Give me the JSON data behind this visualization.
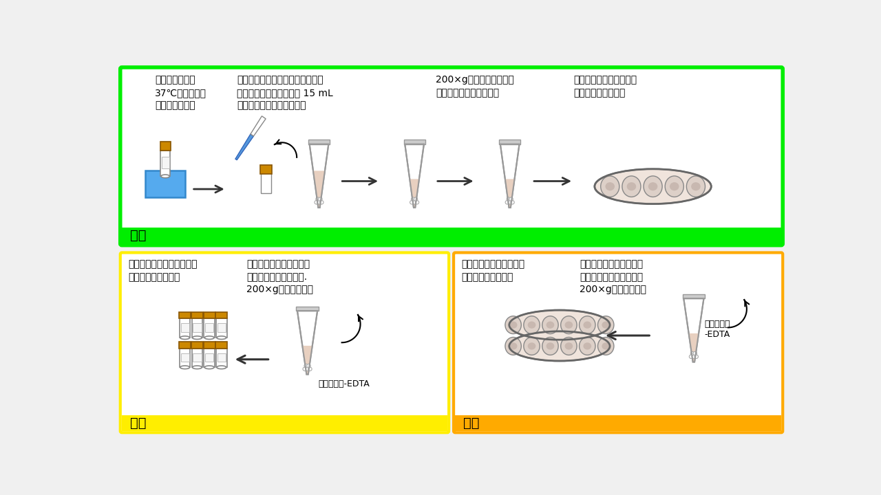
{
  "bg_color": "#f0f0f0",
  "top_box_edge": "#00ee00",
  "top_box_face": "#ffffff",
  "top_label_bg": "#00ee00",
  "bl_box_edge": "#ffee00",
  "bl_box_face": "#ffffff",
  "bl_label_bg": "#ffee00",
  "br_box_edge": "#ffaa00",
  "br_box_face": "#ffffff",
  "br_label_bg": "#ffaa00",
  "label_top": "解凍",
  "label_bl": "凍結",
  "label_br": "継代",
  "top_t1": "凍結バイアルを\n37℃のウオータ\nーバスに入れる",
  "top_t2": "バイアルの中身を、あらかじめ温\nめておいた培地と一緒に 15 mL\nのコニカルチューブに移す",
  "top_t3": "200×gで３分間遠心し、\n細胞をペレット状にする",
  "top_t4": "細胞を培地で再懸濁し、\n培養容器に播種する",
  "bl_t1": "凍結保存培地を使用して、\n細胞を凍結保存する",
  "bl_t2": "等量の完全培地を加え、\nトリプシンを中和する.\n200×gで３分間遠心",
  "br_t1": "細胞を培地で再懸濁し、\n培養容器に播種する",
  "br_t2": "等量の完全培地を加え、\nトリプシンを中和する．\n200×gで３分間遠心",
  "trypsin1": "トリプシン-EDTA",
  "trypsin2": "トリプシン\n-EDTA",
  "liquid_color": "#e8d0c0",
  "pellet_color": "#ffffff",
  "tube_edge": "#999999",
  "cap_color": "#cc8800",
  "bath_color": "#55aaee",
  "arrow_color": "#333333",
  "font_size_label": 14,
  "font_size_text": 10,
  "font_size_annot": 9
}
